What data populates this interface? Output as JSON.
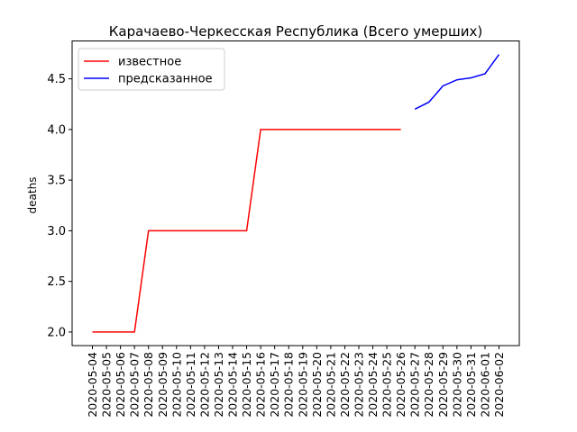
{
  "chart_data": {
    "type": "line",
    "title": "Карачаево-Черкесская Республика (Всего умерших)",
    "ylabel": "deaths",
    "xlabel": "",
    "ylim": [
      1.866,
      4.874
    ],
    "yticks": [
      "2.0",
      "2.5",
      "3.0",
      "3.5",
      "4.0",
      "4.5"
    ],
    "ytick_values": [
      2.0,
      2.5,
      3.0,
      3.5,
      4.0,
      4.5
    ],
    "categories": [
      "2020-05-04",
      "2020-05-05",
      "2020-05-06",
      "2020-05-07",
      "2020-05-08",
      "2020-05-09",
      "2020-05-10",
      "2020-05-11",
      "2020-05-12",
      "2020-05-13",
      "2020-05-14",
      "2020-05-15",
      "2020-05-16",
      "2020-05-17",
      "2020-05-18",
      "2020-05-19",
      "2020-05-20",
      "2020-05-21",
      "2020-05-22",
      "2020-05-23",
      "2020-05-24",
      "2020-05-25",
      "2020-05-26",
      "2020-05-27",
      "2020-05-28",
      "2020-05-29",
      "2020-05-30",
      "2020-05-31",
      "2020-06-01",
      "2020-06-02"
    ],
    "grid": false,
    "legend_position": "top-left",
    "series": [
      {
        "name": "известное",
        "color": "#ff0000",
        "x": [
          "2020-05-04",
          "2020-05-05",
          "2020-05-06",
          "2020-05-07",
          "2020-05-08",
          "2020-05-09",
          "2020-05-10",
          "2020-05-11",
          "2020-05-12",
          "2020-05-13",
          "2020-05-14",
          "2020-05-15",
          "2020-05-16",
          "2020-05-17",
          "2020-05-18",
          "2020-05-19",
          "2020-05-20",
          "2020-05-21",
          "2020-05-22",
          "2020-05-23",
          "2020-05-24",
          "2020-05-25",
          "2020-05-26"
        ],
        "values": [
          2,
          2,
          2,
          2,
          3,
          3,
          3,
          3,
          3,
          3,
          3,
          3,
          4,
          4,
          4,
          4,
          4,
          4,
          4,
          4,
          4,
          4,
          4
        ]
      },
      {
        "name": "предсказанное",
        "color": "#0000ff",
        "x": [
          "2020-05-27",
          "2020-05-28",
          "2020-05-29",
          "2020-05-30",
          "2020-05-31",
          "2020-06-01",
          "2020-06-02"
        ],
        "values": [
          4.2,
          4.27,
          4.43,
          4.49,
          4.51,
          4.55,
          4.74
        ]
      }
    ]
  }
}
